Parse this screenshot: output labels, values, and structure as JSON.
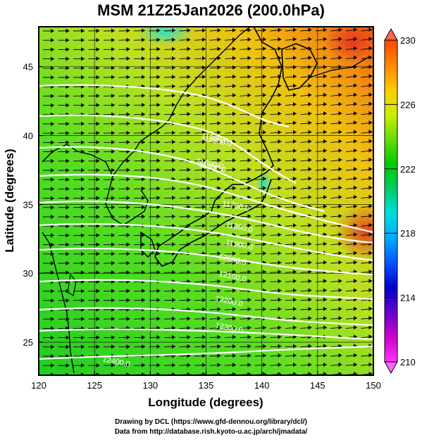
{
  "title": "MSM 21Z25Jan2026 (200.0hPa)",
  "xlabel": "Longitude (degrees)",
  "ylabel": "Latitude  (degrees)",
  "x_ticks": [
    "120",
    "125",
    "130",
    "135",
    "140",
    "145",
    "150"
  ],
  "y_ticks": [
    "25",
    "30",
    "35",
    "40",
    "45"
  ],
  "colorbar": {
    "ticks": [
      "230",
      "226",
      "222",
      "218",
      "214",
      "210"
    ],
    "min": 210,
    "max": 230,
    "colors": [
      "#ff33ff",
      "#cc00cc",
      "#6600cc",
      "#0000cc",
      "#0055ff",
      "#00aaff",
      "#00dddd",
      "#00cc66",
      "#00cc00",
      "#66dd00",
      "#ccee00",
      "#ffcc00",
      "#ff8800",
      "#ff4400"
    ]
  },
  "contour_labels": [
    "11300.0",
    "11400.0",
    "11500.0",
    "11600.0",
    "11700.0",
    "11800.0",
    "11900.0",
    "12000.0",
    "12100.0",
    "12200.0",
    "12300.0",
    "12400.0"
  ],
  "credits": [
    "Drawing by DCL (https://www.gfd-dennou.org/library/dcl/)",
    "Data from http://database.rish.kyoto-u.ac.jp/arch/jmadata/"
  ],
  "colors": {
    "frame": "#000000",
    "contour": "#ffffff",
    "vector": "#000000"
  }
}
